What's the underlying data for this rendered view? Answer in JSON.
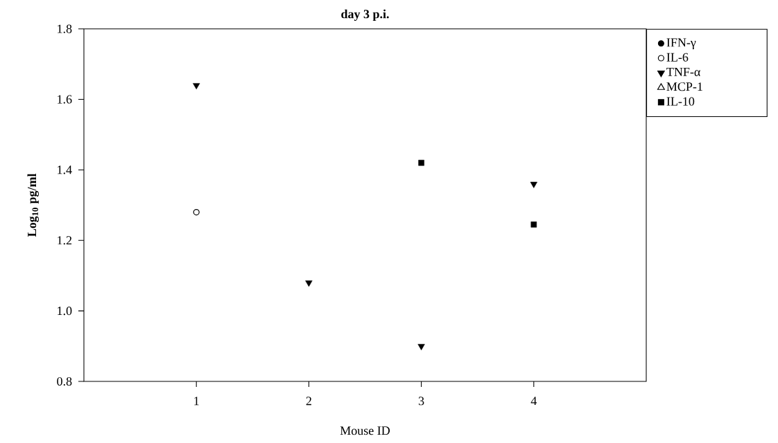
{
  "chart_data": {
    "type": "scatter",
    "title": "day 3 p.i.",
    "xlabel": "Mouse ID",
    "ylabel": "Log$_{10}$ pg/ml",
    "x": [
      1,
      2,
      3,
      4
    ],
    "series": [
      {
        "name": "IFN-γ",
        "color": "#000000",
        "marker": "circle",
        "values": [
          null,
          null,
          null,
          null
        ]
      },
      {
        "name": "IL-6",
        "color": "#000000",
        "marker": "circle-open",
        "values": [
          1.28,
          null,
          null,
          null
        ]
      },
      {
        "name": "TNF-α",
        "color": "#000000",
        "marker": "triangle-down",
        "values": [
          1.64,
          1.08,
          0.9,
          1.36
        ]
      },
      {
        "name": "MCP-1",
        "color": "#000000",
        "marker": "triangle-open",
        "values": [
          null,
          null,
          null,
          null
        ]
      },
      {
        "name": "IL-10",
        "color": "#000000",
        "marker": "square",
        "values": [
          null,
          null,
          1.42,
          1.245
        ]
      }
    ],
    "xlim": [
      0,
      5
    ],
    "xticks": [
      1,
      2,
      3,
      4
    ],
    "ylim": [
      0.8,
      1.8
    ],
    "yticks": [
      {
        "value": 0.8,
        "label": "0.8"
      },
      {
        "value": 1.0,
        "label": "1.0"
      },
      {
        "value": 1.2,
        "label": "1.2"
      },
      {
        "value": 1.4,
        "label": "1.4"
      },
      {
        "value": 1.6,
        "label": "1.6"
      },
      {
        "value": 1.8,
        "label": "1.8"
      }
    ],
    "legend": "right",
    "grid": false
  }
}
